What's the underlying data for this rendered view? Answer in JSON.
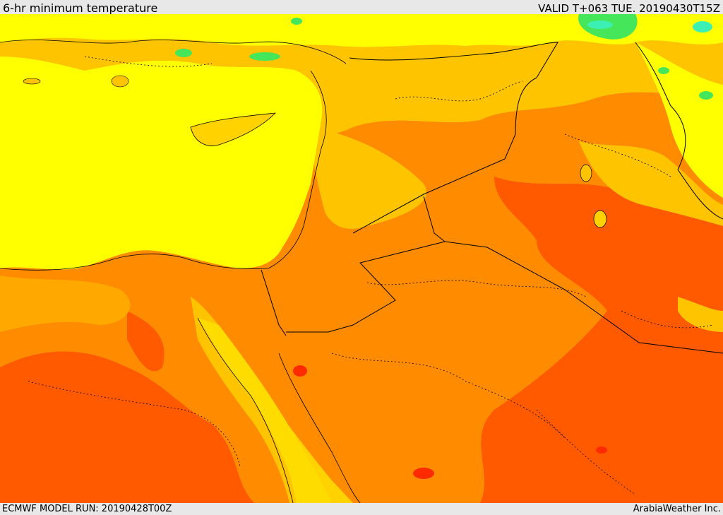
{
  "header": {
    "title": "6-hr minimum temperature",
    "valid": "VALID T+063 TUE. 20190430T15Z"
  },
  "footer": {
    "model_run": "ECMWF MODEL RUN: 20190428T00Z",
    "credit": "ArabiaWeather Inc."
  },
  "colors": {
    "sea": "#ffff00",
    "light_orange": "#ffc400",
    "orange": "#ff8c00",
    "dark_orange": "#ff5a00",
    "red": "#ff2a00",
    "green": "#46e65a",
    "cyan": "#3cf0b4",
    "border_line": "#000000"
  }
}
